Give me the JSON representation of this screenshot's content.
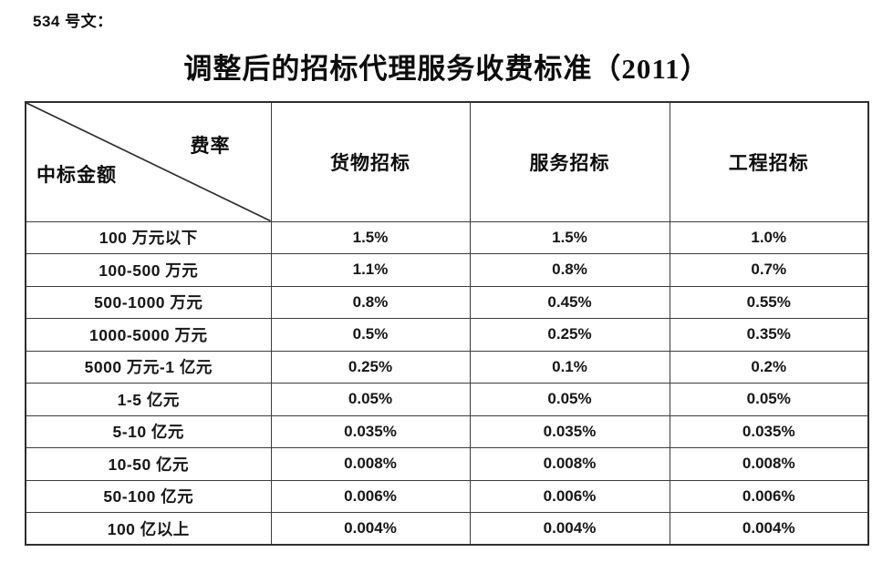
{
  "page": {
    "doc_label": "534 号文：",
    "title": "调整后的招标代理服务收费标准（2011）"
  },
  "table": {
    "corner": {
      "top_right_label": "费率",
      "bottom_left_label": "中标金额"
    },
    "columns": [
      "货物招标",
      "服务招标",
      "工程招标"
    ],
    "rows": [
      {
        "label": "100 万元以下",
        "values": [
          "1.5%",
          "1.5%",
          "1.0%"
        ]
      },
      {
        "label": "100-500 万元",
        "values": [
          "1.1%",
          "0.8%",
          "0.7%"
        ]
      },
      {
        "label": "500-1000 万元",
        "values": [
          "0.8%",
          "0.45%",
          "0.55%"
        ]
      },
      {
        "label": "1000-5000 万元",
        "values": [
          "0.5%",
          "0.25%",
          "0.35%"
        ]
      },
      {
        "label": "5000 万元-1 亿元",
        "values": [
          "0.25%",
          "0.1%",
          "0.2%"
        ]
      },
      {
        "label": "1-5 亿元",
        "values": [
          "0.05%",
          "0.05%",
          "0.05%"
        ]
      },
      {
        "label": "5-10 亿元",
        "values": [
          "0.035%",
          "0.035%",
          "0.035%"
        ]
      },
      {
        "label": "10-50 亿元",
        "values": [
          "0.008%",
          "0.008%",
          "0.008%"
        ]
      },
      {
        "label": "50-100 亿元",
        "values": [
          "0.006%",
          "0.006%",
          "0.006%"
        ]
      },
      {
        "label": "100 亿以上",
        "values": [
          "0.004%",
          "0.004%",
          "0.004%"
        ]
      }
    ]
  },
  "colors": {
    "text": "#111111",
    "table_border": "#3c3c3c",
    "background": "#ffffff"
  }
}
